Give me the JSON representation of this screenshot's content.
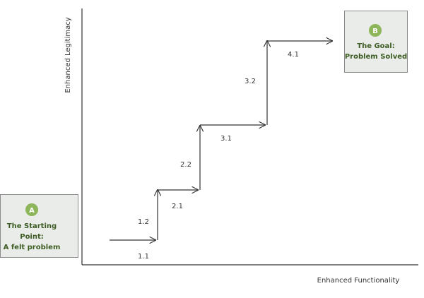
{
  "axes": {
    "y_label": "Enhanced Legitimacy",
    "x_label": "Enhanced Functionality"
  },
  "start": {
    "badge": "A",
    "lines": [
      "The Starting",
      "Point:",
      "A felt problem"
    ]
  },
  "goal": {
    "badge": "B",
    "lines": [
      "The Goal:",
      "Problem Solved"
    ]
  },
  "steps": [
    "1.1",
    "1.2",
    "2.1",
    "2.2",
    "3.1",
    "3.2",
    "4.1"
  ]
}
